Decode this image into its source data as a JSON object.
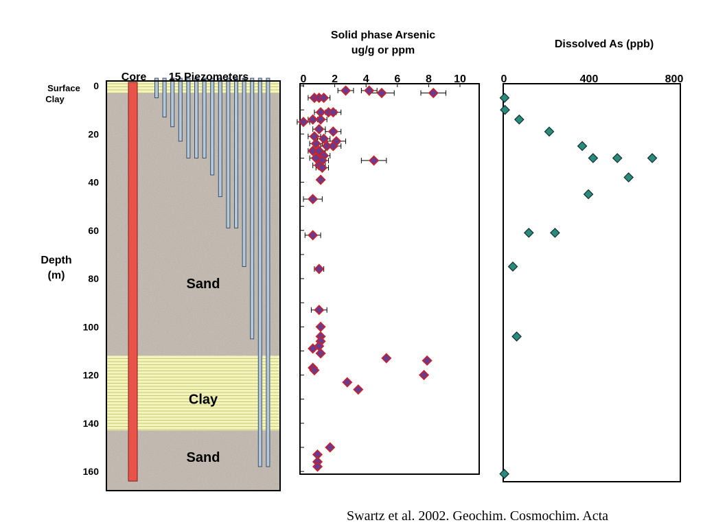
{
  "chart_data": [
    {
      "type": "diagram",
      "title": "",
      "column_labels": {
        "core": "Core",
        "piezometers": "15 Piezometers"
      },
      "ylabel": "Depth (m)",
      "ylabel_lines": [
        "Depth",
        "(m)"
      ],
      "ylim": [
        0,
        160
      ],
      "y_ticks": [
        0,
        20,
        40,
        60,
        80,
        100,
        120,
        140,
        160
      ],
      "surface_label_lines": [
        "Surface",
        "Clay"
      ],
      "layers": [
        {
          "name": "Surface Clay",
          "top": 0,
          "bottom": 3
        },
        {
          "name": "Sand",
          "top": 3,
          "bottom": 112
        },
        {
          "name": "Clay",
          "top": 112,
          "bottom": 143
        },
        {
          "name": "Sand",
          "top": 143,
          "bottom": 168
        }
      ],
      "layer_labels": [
        {
          "text": "Sand",
          "depth": 82
        },
        {
          "text": "Clay",
          "depth": 130
        },
        {
          "text": "Sand",
          "depth": 154
        }
      ],
      "core_depth": 164,
      "piezometer_depths": [
        5,
        13,
        17,
        23,
        30,
        30,
        30,
        37,
        46,
        59,
        59,
        75,
        105,
        158,
        158
      ],
      "colors": {
        "core": "#e8544a",
        "piezometer": "#b5c7da",
        "piezometer_edge": "#3b4e63",
        "sand": "#ab9f93",
        "clay": "#f2f2b8",
        "clay_line": "#c9c975"
      }
    },
    {
      "type": "scatter",
      "title_lines": [
        "Solid phase Arsenic",
        "ug/g or ppm"
      ],
      "xlim": [
        0,
        11
      ],
      "x_ticks": [
        0,
        2,
        4,
        6,
        8,
        10
      ],
      "ylim": [
        0,
        160
      ],
      "xlabel": "",
      "ylabel": "",
      "marker_color": "#6a3a8e",
      "marker_edge": "#d02020",
      "points": [
        {
          "x": 2.7,
          "y": 2,
          "xerr": 0.5
        },
        {
          "x": 4.2,
          "y": 2,
          "xerr": 0.5
        },
        {
          "x": 5.0,
          "y": 3,
          "xerr": 0.8
        },
        {
          "x": 8.3,
          "y": 3,
          "xerr": 0.8
        },
        {
          "x": 0.7,
          "y": 5,
          "xerr": 0.4
        },
        {
          "x": 1.0,
          "y": 5,
          "xerr": 0.4
        },
        {
          "x": 1.3,
          "y": 5,
          "xerr": 0.4
        },
        {
          "x": 1.1,
          "y": 11,
          "xerr": 0.4
        },
        {
          "x": 1.6,
          "y": 11,
          "xerr": 0.5
        },
        {
          "x": 1.9,
          "y": 11,
          "xerr": 0.5
        },
        {
          "x": 0.0,
          "y": 15,
          "xerr": 0.4
        },
        {
          "x": 0.6,
          "y": 14,
          "xerr": 0.3
        },
        {
          "x": 1.1,
          "y": 14,
          "xerr": 0.4
        },
        {
          "x": 1.0,
          "y": 18,
          "xerr": 0.4
        },
        {
          "x": 1.9,
          "y": 19,
          "xerr": 0.5
        },
        {
          "x": 0.7,
          "y": 21,
          "xerr": 0.4
        },
        {
          "x": 1.3,
          "y": 22,
          "xerr": 0.4
        },
        {
          "x": 2.1,
          "y": 23,
          "xerr": 0.6
        },
        {
          "x": 0.8,
          "y": 24,
          "xerr": 0.4
        },
        {
          "x": 1.5,
          "y": 25,
          "xerr": 0.4
        },
        {
          "x": 1.9,
          "y": 25,
          "xerr": 0.5
        },
        {
          "x": 0.6,
          "y": 27,
          "xerr": 0.3
        },
        {
          "x": 1.0,
          "y": 27,
          "xerr": 0.4
        },
        {
          "x": 1.3,
          "y": 29,
          "xerr": 0.4
        },
        {
          "x": 0.8,
          "y": 30,
          "xerr": 0.4
        },
        {
          "x": 1.2,
          "y": 31,
          "xerr": 0.4
        },
        {
          "x": 4.5,
          "y": 31,
          "xerr": 0.8
        },
        {
          "x": 1.0,
          "y": 33,
          "xerr": 0.4
        },
        {
          "x": 1.2,
          "y": 34,
          "xerr": 0.4
        },
        {
          "x": 1.1,
          "y": 39,
          "xerr": 0.0
        },
        {
          "x": 0.6,
          "y": 47,
          "xerr": 0.6
        },
        {
          "x": 0.6,
          "y": 62,
          "xerr": 0.5
        },
        {
          "x": 1.0,
          "y": 76,
          "xerr": 0.3
        },
        {
          "x": 1.0,
          "y": 93,
          "xerr": 0.5
        },
        {
          "x": 1.1,
          "y": 100,
          "xerr": 0.0
        },
        {
          "x": 1.1,
          "y": 104,
          "xerr": 0.0
        },
        {
          "x": 1.1,
          "y": 106,
          "xerr": 0.0
        },
        {
          "x": 1.0,
          "y": 108,
          "xerr": 0.0
        },
        {
          "x": 0.6,
          "y": 109,
          "xerr": 0.0
        },
        {
          "x": 1.1,
          "y": 111,
          "xerr": 0.0
        },
        {
          "x": 5.3,
          "y": 113,
          "xerr": 0.0
        },
        {
          "x": 7.9,
          "y": 114,
          "xerr": 0.0
        },
        {
          "x": 0.6,
          "y": 117,
          "xerr": 0.0
        },
        {
          "x": 0.7,
          "y": 118,
          "xerr": 0.0
        },
        {
          "x": 7.7,
          "y": 120,
          "xerr": 0.0
        },
        {
          "x": 2.8,
          "y": 123,
          "xerr": 0.0
        },
        {
          "x": 3.5,
          "y": 126,
          "xerr": 0.0
        },
        {
          "x": 1.7,
          "y": 150,
          "xerr": 0.0
        },
        {
          "x": 0.9,
          "y": 153,
          "xerr": 0.0
        },
        {
          "x": 0.9,
          "y": 156,
          "xerr": 0.0
        },
        {
          "x": 0.9,
          "y": 158,
          "xerr": 0.0
        }
      ]
    },
    {
      "type": "scatter",
      "title": "Dissolved As (ppb)",
      "xlim": [
        0,
        800
      ],
      "x_ticks": [
        0,
        400,
        800
      ],
      "ylim": [
        0,
        160
      ],
      "xlabel": "",
      "ylabel": "",
      "marker_color": "#2b8a7e",
      "marker_edge": "#10302c",
      "points": [
        {
          "x": 3,
          "y": 5
        },
        {
          "x": 5,
          "y": 10
        },
        {
          "x": 72,
          "y": 14
        },
        {
          "x": 213,
          "y": 19
        },
        {
          "x": 368,
          "y": 25
        },
        {
          "x": 419,
          "y": 30
        },
        {
          "x": 533,
          "y": 30
        },
        {
          "x": 697,
          "y": 30
        },
        {
          "x": 586,
          "y": 38
        },
        {
          "x": 397,
          "y": 45
        },
        {
          "x": 117,
          "y": 61
        },
        {
          "x": 240,
          "y": 61
        },
        {
          "x": 42,
          "y": 75
        },
        {
          "x": 60,
          "y": 104
        },
        {
          "x": 2,
          "y": 161
        }
      ]
    }
  ],
  "citation": "Swartz et al. 2002. Geochim. Cosmochim. Acta"
}
